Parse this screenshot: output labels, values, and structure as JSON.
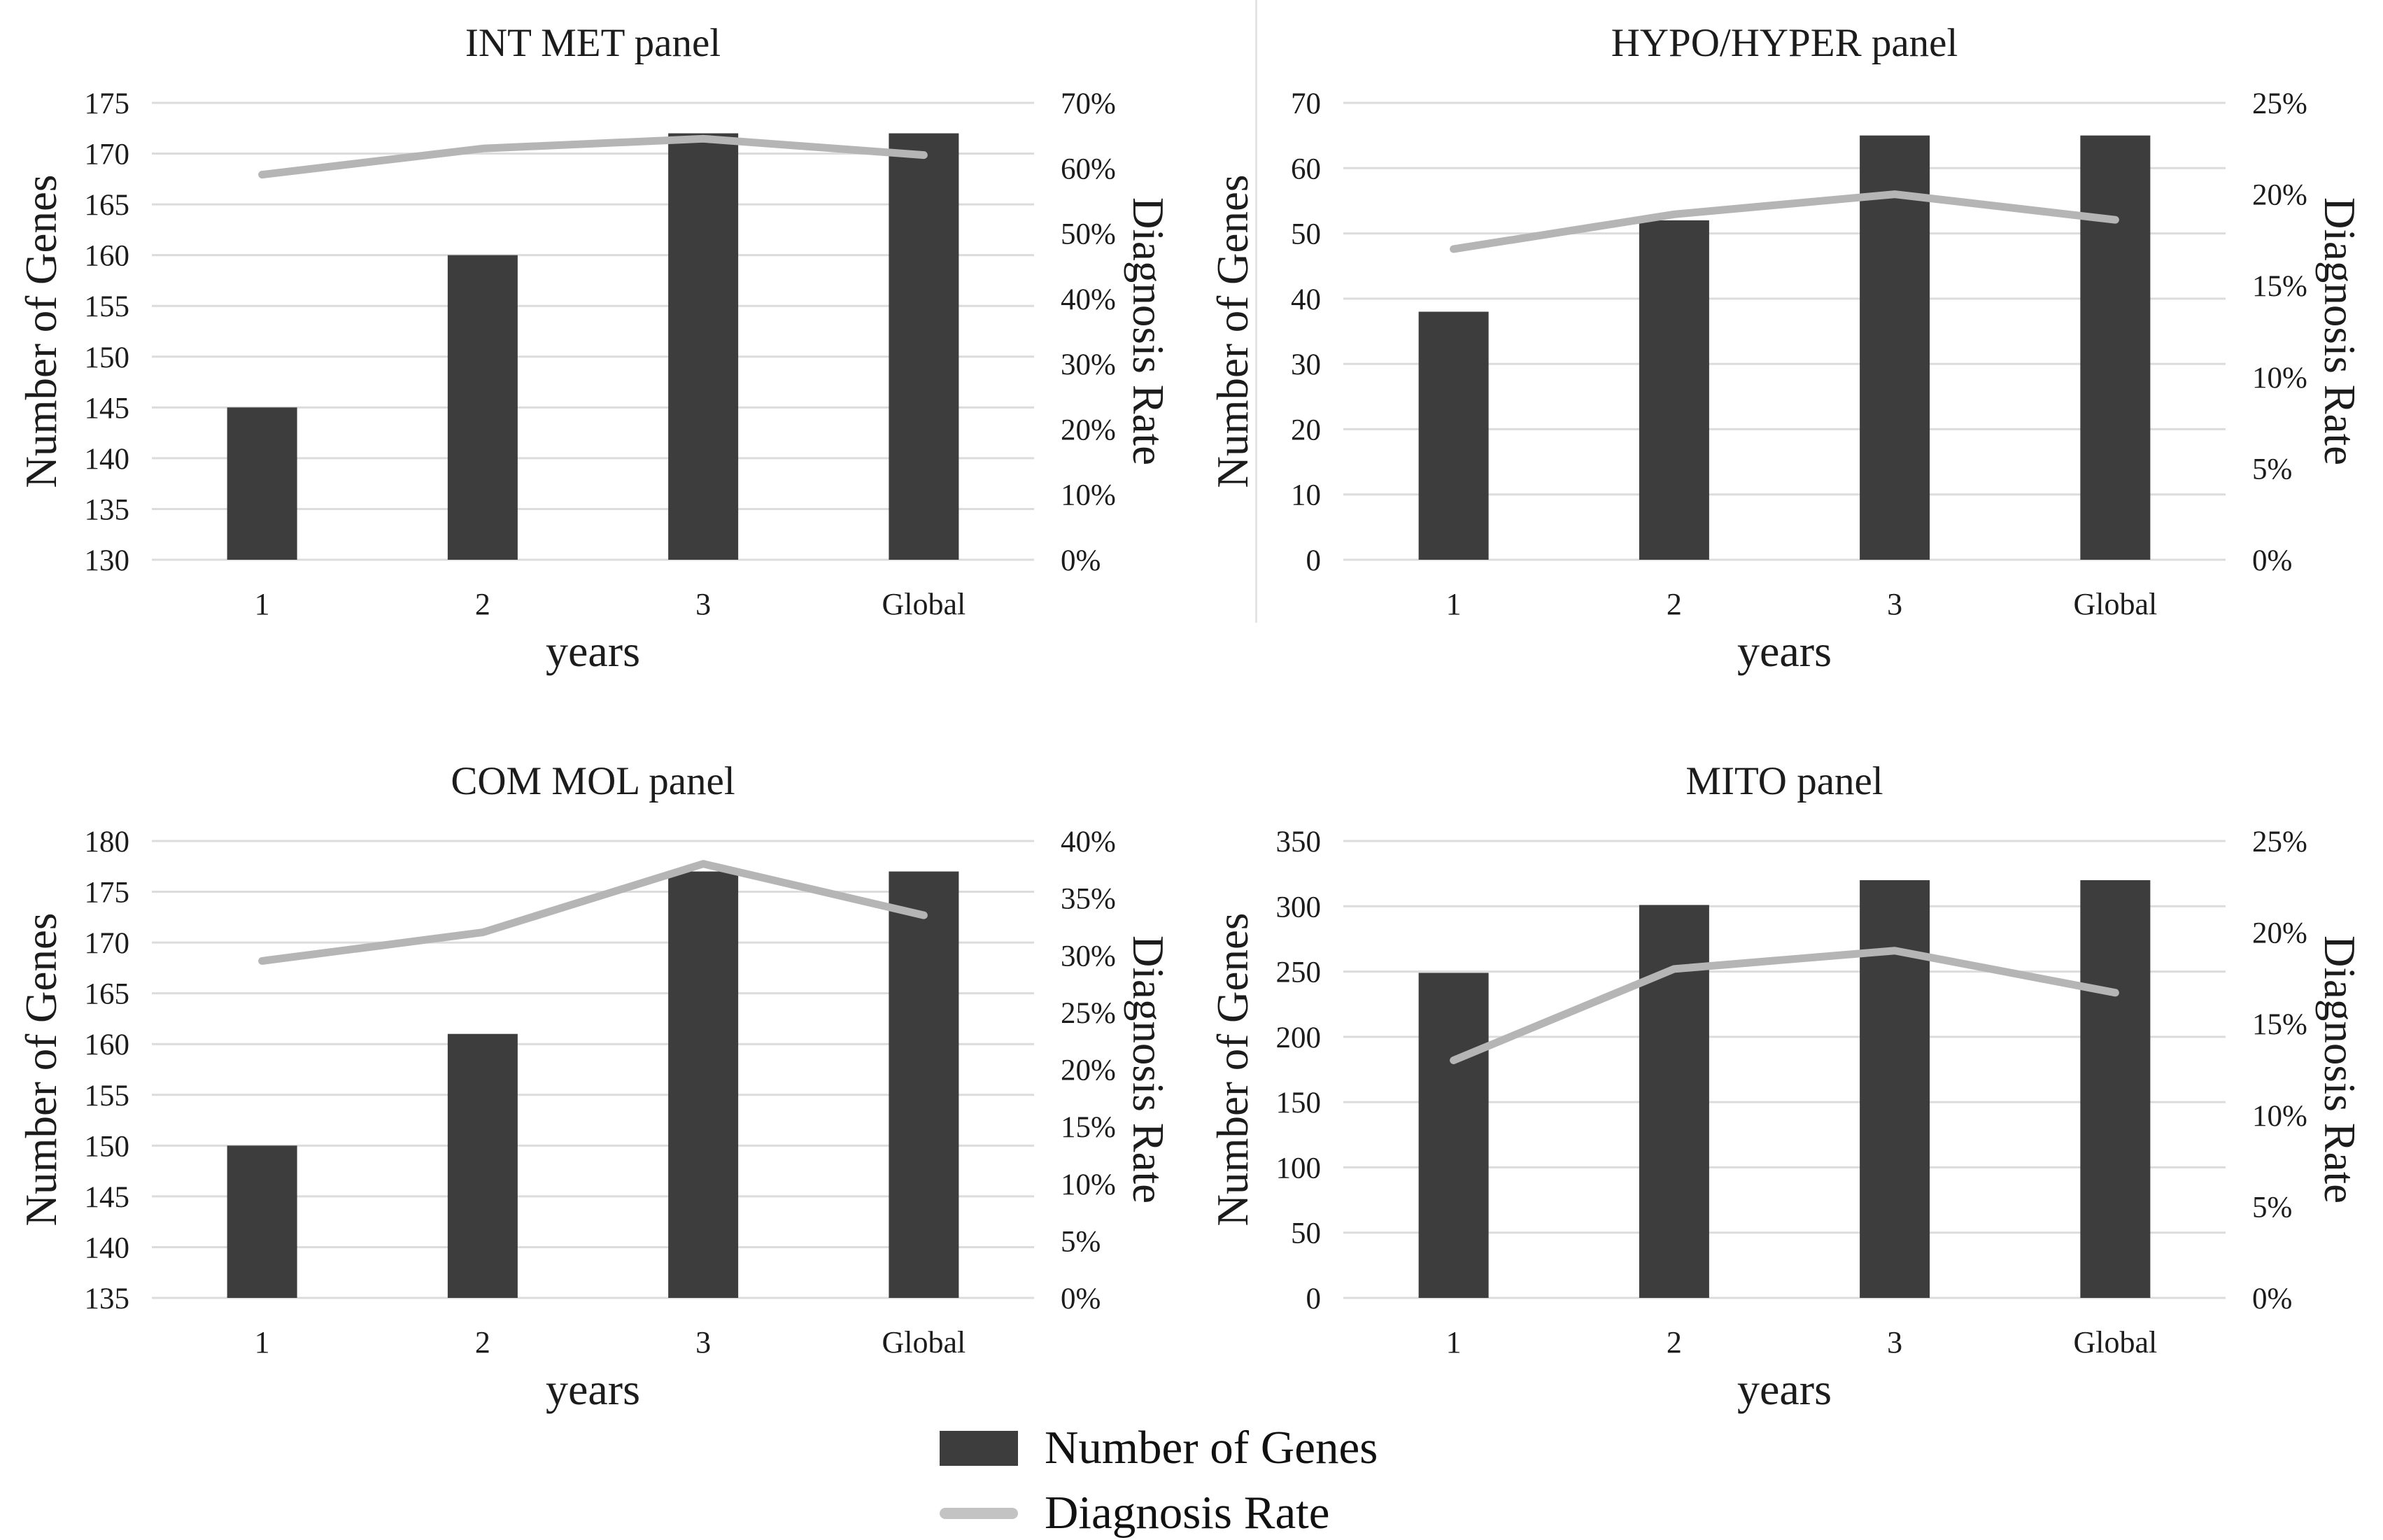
{
  "figure": {
    "background": "#ffffff",
    "colors": {
      "bar": "#3d3d3d",
      "line": "#b5b5b5",
      "legend_line": "#c3c3c3",
      "grid": "#dcdcdc",
      "text": "#1c1c1c",
      "divider": "#e4e4e4"
    },
    "legend": {
      "items": [
        {
          "label": "Number of Genes",
          "marker": "bar-swatch"
        },
        {
          "label": "Diagnosis Rate",
          "marker": "line-swatch"
        }
      ]
    }
  },
  "chart_data": [
    {
      "type": "bar",
      "subtype": "bar+line dual-axis combo",
      "panel_position": "top-left",
      "title": "INT MET panel",
      "categories": [
        "1",
        "2",
        "3",
        "Global"
      ],
      "x_axis_label": "years",
      "grid": true,
      "legend_position": "shared-bottom",
      "left_axis": {
        "title": "Number of Genes",
        "min": 130,
        "max": 175,
        "tick_step": 5,
        "tick_labels": [
          "175",
          "170",
          "165",
          "160",
          "155",
          "150",
          "145",
          "140",
          "135",
          "130"
        ]
      },
      "right_axis": {
        "title": "Diagnosis Rate",
        "min": 0,
        "max": 70,
        "tick_step": 10,
        "unit": "%",
        "tick_labels": [
          "70%",
          "60%",
          "50%",
          "40%",
          "30%",
          "20%",
          "10%",
          "0%"
        ]
      },
      "series": [
        {
          "name": "Number of Genes",
          "type": "bar",
          "axis": "left",
          "values": [
            145,
            160,
            172,
            172
          ]
        },
        {
          "name": "Diagnosis Rate",
          "type": "line",
          "axis": "right",
          "values": [
            59,
            63,
            64.5,
            62
          ]
        }
      ]
    },
    {
      "type": "bar",
      "subtype": "bar+line dual-axis combo",
      "panel_position": "top-right",
      "title": "HYPO/HYPER panel",
      "categories": [
        "1",
        "2",
        "3",
        "Global"
      ],
      "x_axis_label": "years",
      "grid": true,
      "legend_position": "shared-bottom",
      "left_axis": {
        "title": "Number of Genes",
        "min": 0,
        "max": 70,
        "tick_step": 10,
        "tick_labels": [
          "70",
          "60",
          "50",
          "40",
          "30",
          "20",
          "10",
          "0"
        ]
      },
      "right_axis": {
        "title": "Diagnosis Rate",
        "min": 0,
        "max": 25,
        "tick_step": 5,
        "unit": "%",
        "tick_labels": [
          "25%",
          "20%",
          "15%",
          "10%",
          "5%",
          "0%"
        ]
      },
      "series": [
        {
          "name": "Number of Genes",
          "type": "bar",
          "axis": "left",
          "values": [
            38,
            52,
            65,
            65
          ]
        },
        {
          "name": "Diagnosis Rate",
          "type": "line",
          "axis": "right",
          "values": [
            17,
            18.9,
            20,
            18.6
          ]
        }
      ]
    },
    {
      "type": "bar",
      "subtype": "bar+line dual-axis combo",
      "panel_position": "bottom-left",
      "title": "COM MOL panel",
      "categories": [
        "1",
        "2",
        "3",
        "Global"
      ],
      "x_axis_label": "years",
      "grid": true,
      "legend_position": "shared-bottom",
      "left_axis": {
        "title": "Number of Genes",
        "min": 135,
        "max": 180,
        "tick_step": 5,
        "tick_labels": [
          "180",
          "175",
          "170",
          "165",
          "160",
          "155",
          "150",
          "145",
          "140",
          "135"
        ]
      },
      "right_axis": {
        "title": "Diagnosis Rate",
        "min": 0,
        "max": 40,
        "tick_step": 5,
        "unit": "%",
        "tick_labels": [
          "40%",
          "35%",
          "30%",
          "25%",
          "20%",
          "15%",
          "10%",
          "5%",
          "0%"
        ]
      },
      "series": [
        {
          "name": "Number of Genes",
          "type": "bar",
          "axis": "left",
          "values": [
            150,
            161,
            177,
            177
          ]
        },
        {
          "name": "Diagnosis Rate",
          "type": "line",
          "axis": "right",
          "values": [
            29.5,
            32,
            38,
            33.5
          ]
        }
      ]
    },
    {
      "type": "bar",
      "subtype": "bar+line dual-axis combo",
      "panel_position": "bottom-right",
      "title": "MITO panel",
      "categories": [
        "1",
        "2",
        "3",
        "Global"
      ],
      "x_axis_label": "years",
      "grid": true,
      "legend_position": "shared-bottom",
      "left_axis": {
        "title": "Number of Genes",
        "min": 0,
        "max": 350,
        "tick_step": 50,
        "tick_labels": [
          "350",
          "300",
          "250",
          "200",
          "150",
          "100",
          "50",
          "0"
        ]
      },
      "right_axis": {
        "title": "Diagnosis Rate",
        "min": 0,
        "max": 25,
        "tick_step": 5,
        "unit": "%",
        "tick_labels": [
          "25%",
          "20%",
          "15%",
          "10%",
          "5%",
          "0%"
        ]
      },
      "series": [
        {
          "name": "Number of Genes",
          "type": "bar",
          "axis": "left",
          "values": [
            249,
            301,
            320,
            320
          ]
        },
        {
          "name": "Diagnosis Rate",
          "type": "line",
          "axis": "right",
          "values": [
            13,
            18,
            19,
            16.7
          ]
        }
      ]
    }
  ]
}
